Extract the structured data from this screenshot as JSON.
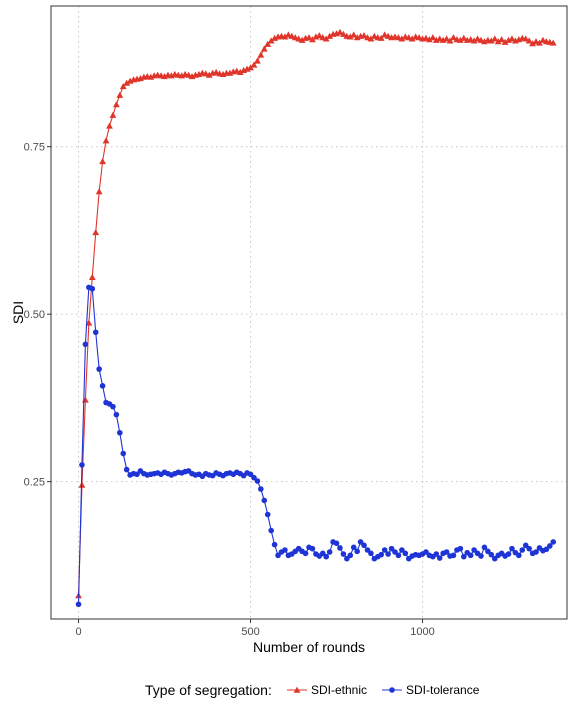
{
  "chart_data": {
    "type": "line",
    "xlabel": "Number of rounds",
    "ylabel": "SDI",
    "xlim": [
      -80,
      1420
    ],
    "ylim": [
      0.045,
      0.96
    ],
    "x_ticks": [
      0,
      500,
      1000
    ],
    "x_tick_labels": [
      "0",
      "500",
      "1000"
    ],
    "y_ticks": [
      0.25,
      0.5,
      0.75
    ],
    "y_tick_labels": [
      "0.25",
      "0.50",
      "0.75"
    ],
    "grid": "major, dotted",
    "legend": {
      "title": "Type of segregation:",
      "position": "bottom"
    },
    "series": [
      {
        "name": "SDI-ethnic",
        "color": "#e0352b",
        "marker": "triangle",
        "x": [
          0,
          10,
          20,
          30,
          40,
          50,
          60,
          70,
          80,
          90,
          100,
          110,
          120,
          130,
          140,
          150,
          160,
          170,
          180,
          190,
          200,
          210,
          220,
          230,
          240,
          250,
          260,
          270,
          280,
          290,
          300,
          310,
          320,
          330,
          340,
          350,
          360,
          370,
          380,
          390,
          400,
          410,
          420,
          430,
          440,
          450,
          460,
          470,
          480,
          490,
          500,
          510,
          520,
          530,
          540,
          550,
          560,
          570,
          580,
          590,
          600,
          610,
          620,
          630,
          640,
          650,
          660,
          670,
          680,
          690,
          700,
          710,
          720,
          730,
          740,
          750,
          760,
          770,
          780,
          790,
          800,
          810,
          820,
          830,
          840,
          850,
          860,
          870,
          880,
          890,
          900,
          910,
          920,
          930,
          940,
          950,
          960,
          970,
          980,
          990,
          1000,
          1010,
          1020,
          1030,
          1040,
          1050,
          1060,
          1070,
          1080,
          1090,
          1100,
          1110,
          1120,
          1130,
          1140,
          1150,
          1160,
          1170,
          1180,
          1190,
          1200,
          1210,
          1220,
          1230,
          1240,
          1250,
          1260,
          1270,
          1280,
          1290,
          1300,
          1310,
          1320,
          1330,
          1340,
          1350,
          1360,
          1370,
          1380
        ],
        "values": [
          0.08,
          0.245,
          0.372,
          0.487,
          0.555,
          0.622,
          0.683,
          0.728,
          0.759,
          0.781,
          0.797,
          0.813,
          0.827,
          0.84,
          0.845,
          0.848,
          0.85,
          0.851,
          0.852,
          0.854,
          0.855,
          0.854,
          0.856,
          0.857,
          0.856,
          0.855,
          0.857,
          0.856,
          0.858,
          0.857,
          0.856,
          0.858,
          0.857,
          0.855,
          0.857,
          0.858,
          0.86,
          0.859,
          0.857,
          0.86,
          0.861,
          0.859,
          0.858,
          0.86,
          0.86,
          0.862,
          0.863,
          0.861,
          0.864,
          0.866,
          0.868,
          0.872,
          0.878,
          0.887,
          0.896,
          0.903,
          0.908,
          0.912,
          0.914,
          0.915,
          0.914,
          0.917,
          0.915,
          0.913,
          0.911,
          0.909,
          0.912,
          0.913,
          0.91,
          0.914,
          0.916,
          0.913,
          0.911,
          0.915,
          0.918,
          0.919,
          0.921,
          0.918,
          0.915,
          0.914,
          0.917,
          0.913,
          0.915,
          0.916,
          0.913,
          0.911,
          0.915,
          0.913,
          0.912,
          0.917,
          0.915,
          0.913,
          0.914,
          0.913,
          0.911,
          0.914,
          0.913,
          0.911,
          0.914,
          0.913,
          0.911,
          0.912,
          0.91,
          0.913,
          0.909,
          0.911,
          0.909,
          0.911,
          0.908,
          0.913,
          0.91,
          0.909,
          0.912,
          0.909,
          0.91,
          0.908,
          0.911,
          0.909,
          0.907,
          0.909,
          0.908,
          0.911,
          0.907,
          0.91,
          0.906,
          0.909,
          0.911,
          0.908,
          0.91,
          0.912,
          0.911,
          0.908,
          0.904,
          0.907,
          0.905,
          0.909,
          0.907,
          0.906,
          0.905
        ]
      },
      {
        "name": "SDI-tolerance",
        "color": "#1f34d6",
        "marker": "circle",
        "x": [
          0,
          10,
          20,
          30,
          40,
          50,
          60,
          70,
          80,
          90,
          100,
          110,
          120,
          130,
          140,
          150,
          160,
          170,
          180,
          190,
          200,
          210,
          220,
          230,
          240,
          250,
          260,
          270,
          280,
          290,
          300,
          310,
          320,
          330,
          340,
          350,
          360,
          370,
          380,
          390,
          400,
          410,
          420,
          430,
          440,
          450,
          460,
          470,
          480,
          490,
          500,
          510,
          520,
          530,
          540,
          550,
          560,
          570,
          580,
          590,
          600,
          610,
          620,
          630,
          640,
          650,
          660,
          670,
          680,
          690,
          700,
          710,
          720,
          730,
          740,
          750,
          760,
          770,
          780,
          790,
          800,
          810,
          820,
          830,
          840,
          850,
          860,
          870,
          880,
          890,
          900,
          910,
          920,
          930,
          940,
          950,
          960,
          970,
          980,
          990,
          1000,
          1010,
          1020,
          1030,
          1040,
          1050,
          1060,
          1070,
          1080,
          1090,
          1100,
          1110,
          1120,
          1130,
          1140,
          1150,
          1160,
          1170,
          1180,
          1190,
          1200,
          1210,
          1220,
          1230,
          1240,
          1250,
          1260,
          1270,
          1280,
          1290,
          1300,
          1310,
          1320,
          1330,
          1340,
          1350,
          1360,
          1370,
          1380
        ],
        "values": [
          0.067,
          0.275,
          0.455,
          0.54,
          0.538,
          0.473,
          0.418,
          0.393,
          0.368,
          0.366,
          0.362,
          0.35,
          0.323,
          0.292,
          0.268,
          0.26,
          0.262,
          0.261,
          0.266,
          0.262,
          0.26,
          0.261,
          0.262,
          0.263,
          0.261,
          0.264,
          0.262,
          0.26,
          0.262,
          0.264,
          0.263,
          0.265,
          0.266,
          0.262,
          0.26,
          0.261,
          0.258,
          0.262,
          0.26,
          0.259,
          0.263,
          0.261,
          0.259,
          0.262,
          0.263,
          0.261,
          0.264,
          0.262,
          0.259,
          0.263,
          0.261,
          0.256,
          0.251,
          0.239,
          0.222,
          0.201,
          0.177,
          0.156,
          0.14,
          0.145,
          0.148,
          0.14,
          0.142,
          0.146,
          0.15,
          0.146,
          0.143,
          0.152,
          0.15,
          0.142,
          0.139,
          0.143,
          0.138,
          0.145,
          0.16,
          0.158,
          0.151,
          0.142,
          0.135,
          0.14,
          0.152,
          0.146,
          0.16,
          0.155,
          0.148,
          0.143,
          0.135,
          0.138,
          0.141,
          0.148,
          0.142,
          0.15,
          0.145,
          0.14,
          0.148,
          0.143,
          0.135,
          0.139,
          0.141,
          0.14,
          0.142,
          0.145,
          0.14,
          0.138,
          0.142,
          0.136,
          0.143,
          0.145,
          0.139,
          0.14,
          0.148,
          0.15,
          0.138,
          0.144,
          0.14,
          0.148,
          0.143,
          0.139,
          0.152,
          0.146,
          0.141,
          0.135,
          0.14,
          0.143,
          0.139,
          0.142,
          0.15,
          0.144,
          0.14,
          0.148,
          0.155,
          0.15,
          0.143,
          0.145,
          0.151,
          0.147,
          0.149,
          0.154,
          0.16
        ]
      }
    ]
  }
}
